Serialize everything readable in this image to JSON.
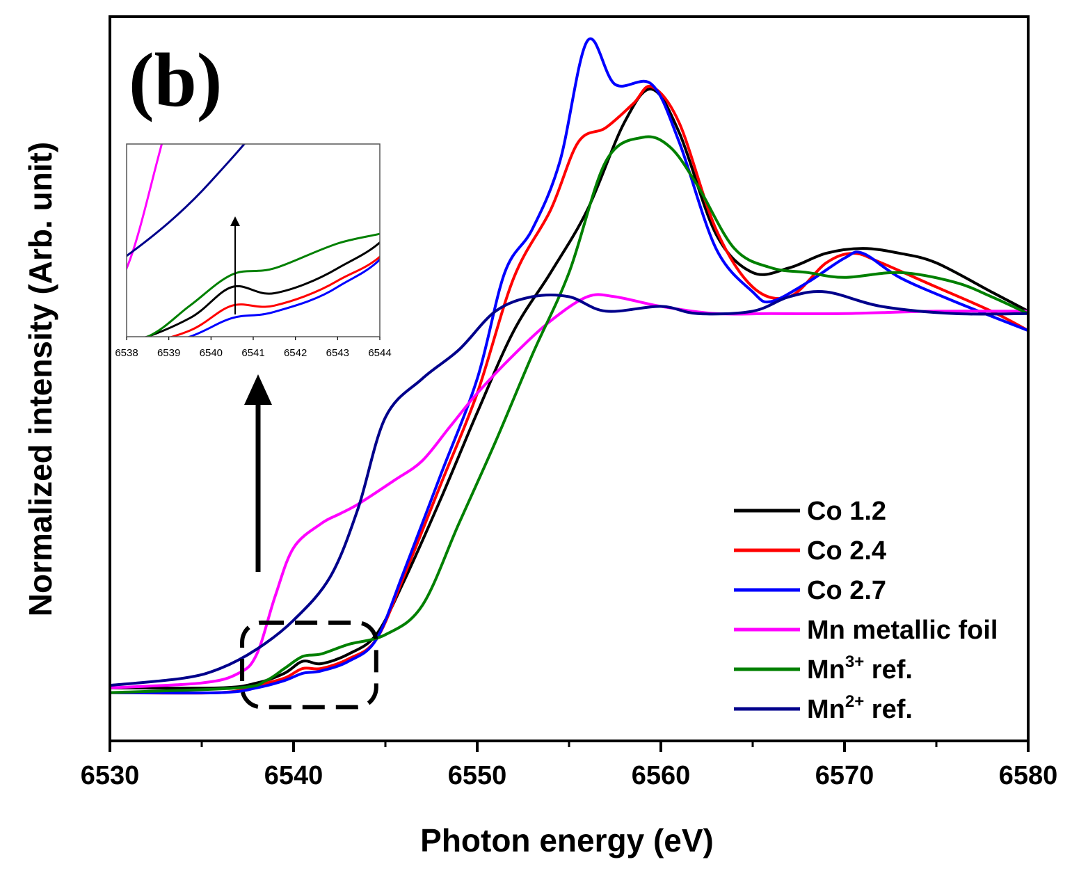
{
  "chart_data": {
    "type": "line",
    "panel_label": "(b)",
    "xlabel": "Photon energy (eV)",
    "ylabel": "Normalized intensity (Arb. unit)",
    "xlim": [
      6530,
      6580
    ],
    "ylim": [
      0,
      1.5
    ],
    "xticks": [
      6530,
      6540,
      6550,
      6560,
      6570,
      6580
    ],
    "xtick_labels": [
      "6530",
      "6540",
      "6550",
      "6560",
      "6570",
      "6580"
    ],
    "legend_position": "bottom-right",
    "series": [
      {
        "name": "Co 1.2",
        "label_main": "Co 1.2",
        "label_sup": "",
        "label_tail": "",
        "color": "#000000",
        "points": [
          [
            6530,
            0.11
          ],
          [
            6536,
            0.11
          ],
          [
            6538,
            0.12
          ],
          [
            6539.5,
            0.14
          ],
          [
            6540.5,
            0.165
          ],
          [
            6541.5,
            0.16
          ],
          [
            6543,
            0.18
          ],
          [
            6544.5,
            0.22
          ],
          [
            6546,
            0.33
          ],
          [
            6548,
            0.5
          ],
          [
            6550,
            0.68
          ],
          [
            6552,
            0.85
          ],
          [
            6554,
            0.97
          ],
          [
            6556,
            1.1
          ],
          [
            6558,
            1.28
          ],
          [
            6559.5,
            1.35
          ],
          [
            6561,
            1.26
          ],
          [
            6563,
            1.05
          ],
          [
            6565,
            0.97
          ],
          [
            6567,
            0.98
          ],
          [
            6569,
            1.01
          ],
          [
            6571,
            1.02
          ],
          [
            6573,
            1.01
          ],
          [
            6575,
            0.99
          ],
          [
            6578,
            0.93
          ],
          [
            6580,
            0.89
          ]
        ]
      },
      {
        "name": "Co 2.4",
        "label_main": "Co 2.4",
        "label_sup": "",
        "label_tail": "",
        "color": "#ff0000",
        "points": [
          [
            6530,
            0.1
          ],
          [
            6536,
            0.1
          ],
          [
            6538,
            0.115
          ],
          [
            6539.5,
            0.13
          ],
          [
            6540.5,
            0.15
          ],
          [
            6541.5,
            0.15
          ],
          [
            6543,
            0.17
          ],
          [
            6544.5,
            0.21
          ],
          [
            6546,
            0.34
          ],
          [
            6548,
            0.53
          ],
          [
            6550,
            0.72
          ],
          [
            6552,
            0.96
          ],
          [
            6554,
            1.1
          ],
          [
            6555.5,
            1.24
          ],
          [
            6557,
            1.27
          ],
          [
            6558.5,
            1.32
          ],
          [
            6559.5,
            1.355
          ],
          [
            6561,
            1.28
          ],
          [
            6563,
            1.06
          ],
          [
            6565,
            0.94
          ],
          [
            6567,
            0.92
          ],
          [
            6569,
            0.99
          ],
          [
            6570.5,
            1.01
          ],
          [
            6572,
            0.99
          ],
          [
            6575,
            0.94
          ],
          [
            6578,
            0.89
          ],
          [
            6580,
            0.85
          ]
        ]
      },
      {
        "name": "Co 2.7",
        "label_main": "Co 2.7",
        "label_sup": "",
        "label_tail": "",
        "color": "#0000ff",
        "points": [
          [
            6530,
            0.1
          ],
          [
            6536,
            0.1
          ],
          [
            6538,
            0.11
          ],
          [
            6539.5,
            0.125
          ],
          [
            6540.5,
            0.14
          ],
          [
            6541.5,
            0.145
          ],
          [
            6543,
            0.165
          ],
          [
            6544.5,
            0.21
          ],
          [
            6546,
            0.35
          ],
          [
            6548,
            0.55
          ],
          [
            6550,
            0.75
          ],
          [
            6551.5,
            0.97
          ],
          [
            6553,
            1.06
          ],
          [
            6554.5,
            1.2
          ],
          [
            6556,
            1.45
          ],
          [
            6557.5,
            1.36
          ],
          [
            6559.5,
            1.36
          ],
          [
            6561,
            1.24
          ],
          [
            6563,
            1.02
          ],
          [
            6565,
            0.93
          ],
          [
            6566,
            0.91
          ],
          [
            6568,
            0.95
          ],
          [
            6570,
            1.0
          ],
          [
            6571,
            1.01
          ],
          [
            6573,
            0.96
          ],
          [
            6576,
            0.91
          ],
          [
            6580,
            0.85
          ]
        ]
      },
      {
        "name": "Mn metallic foil",
        "label_main": "Mn metallic foil",
        "label_sup": "",
        "label_tail": "",
        "color": "#ff00ff",
        "points": [
          [
            6530,
            0.11
          ],
          [
            6535,
            0.12
          ],
          [
            6537,
            0.14
          ],
          [
            6538,
            0.18
          ],
          [
            6539,
            0.3
          ],
          [
            6540,
            0.4
          ],
          [
            6541.5,
            0.45
          ],
          [
            6542.5,
            0.47
          ],
          [
            6543.5,
            0.49
          ],
          [
            6545.5,
            0.54
          ],
          [
            6547,
            0.58
          ],
          [
            6548.5,
            0.65
          ],
          [
            6550,
            0.72
          ],
          [
            6552,
            0.8
          ],
          [
            6554,
            0.87
          ],
          [
            6556,
            0.92
          ],
          [
            6557.5,
            0.92
          ],
          [
            6560,
            0.9
          ],
          [
            6563,
            0.885
          ],
          [
            6566,
            0.885
          ],
          [
            6570,
            0.885
          ],
          [
            6575,
            0.89
          ],
          [
            6580,
            0.89
          ]
        ]
      },
      {
        "name": "Mn3+ ref.",
        "label_main": "Mn",
        "label_sup": "3+",
        "label_tail": " ref.",
        "color": "#008000",
        "points": [
          [
            6530,
            0.1
          ],
          [
            6537,
            0.11
          ],
          [
            6538.5,
            0.125
          ],
          [
            6539.5,
            0.15
          ],
          [
            6540.5,
            0.175
          ],
          [
            6541.5,
            0.18
          ],
          [
            6543,
            0.2
          ],
          [
            6545,
            0.22
          ],
          [
            6547,
            0.28
          ],
          [
            6549,
            0.45
          ],
          [
            6551,
            0.62
          ],
          [
            6553,
            0.8
          ],
          [
            6555,
            0.97
          ],
          [
            6557,
            1.2
          ],
          [
            6559,
            1.25
          ],
          [
            6560.5,
            1.23
          ],
          [
            6562,
            1.15
          ],
          [
            6564,
            1.02
          ],
          [
            6566,
            0.98
          ],
          [
            6568,
            0.97
          ],
          [
            6570,
            0.96
          ],
          [
            6573,
            0.97
          ],
          [
            6576,
            0.95
          ],
          [
            6578,
            0.92
          ],
          [
            6580,
            0.885
          ]
        ]
      },
      {
        "name": "Mn2+ ref.",
        "label_main": "Mn",
        "label_sup": "2+",
        "label_tail": " ref.",
        "color": "#00008b",
        "points": [
          [
            6530,
            0.115
          ],
          [
            6534,
            0.13
          ],
          [
            6536,
            0.15
          ],
          [
            6538,
            0.19
          ],
          [
            6540,
            0.25
          ],
          [
            6542,
            0.34
          ],
          [
            6543.5,
            0.48
          ],
          [
            6545,
            0.67
          ],
          [
            6547,
            0.75
          ],
          [
            6549,
            0.81
          ],
          [
            6551,
            0.89
          ],
          [
            6553,
            0.92
          ],
          [
            6555,
            0.92
          ],
          [
            6557,
            0.89
          ],
          [
            6560,
            0.9
          ],
          [
            6562,
            0.885
          ],
          [
            6565,
            0.89
          ],
          [
            6567,
            0.92
          ],
          [
            6569,
            0.93
          ],
          [
            6572,
            0.9
          ],
          [
            6576,
            0.885
          ],
          [
            6580,
            0.885
          ]
        ]
      }
    ],
    "inset": {
      "xlim": [
        6538,
        6544
      ],
      "ylim": [
        0.125,
        0.28
      ],
      "xticks": [
        6538,
        6539,
        6540,
        6541,
        6542,
        6543,
        6544
      ],
      "xtick_labels": [
        "6538",
        "6539",
        "6540",
        "6541",
        "6542",
        "6543",
        "6544"
      ],
      "zoom_region": {
        "x": [
          6537.2,
          6544.5
        ],
        "y": [
          0.07,
          0.245
        ]
      }
    }
  }
}
